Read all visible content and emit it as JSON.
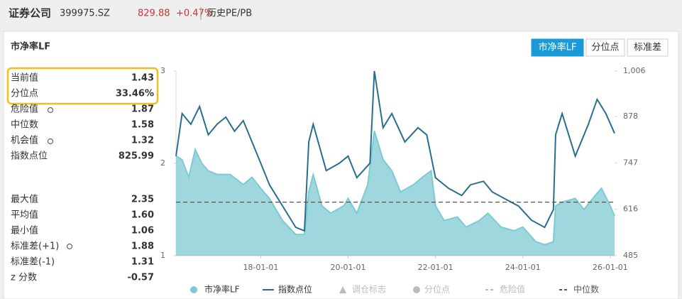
{
  "header": {
    "name": "证券公司",
    "code": "399975.SZ",
    "price": "829.88",
    "change": "+0.47%",
    "tab": "历史PE/PB"
  },
  "panel": {
    "title": "市净率LF",
    "buttons": [
      "市净率LF",
      "分位点",
      "标准差"
    ],
    "stats_top": [
      [
        "当前值",
        "1.43"
      ],
      [
        "分位点",
        "33.46%"
      ],
      [
        "危险值",
        "1.87"
      ],
      [
        "中位数",
        "1.58"
      ],
      [
        "机会值",
        "1.32"
      ],
      [
        "指数点位",
        "825.99"
      ]
    ],
    "stats_bottom": [
      [
        "最大值",
        "2.35"
      ],
      [
        "平均值",
        "1.60"
      ],
      [
        "最小值",
        "1.06"
      ],
      [
        "标准差(+1)",
        "1.88"
      ],
      [
        "标准差(-1)",
        "1.31"
      ],
      [
        "z 分数",
        "-0.57"
      ]
    ]
  },
  "chart_data": {
    "type": "line",
    "xlim": [
      2016.06,
      2026.1
    ],
    "xticks": [
      {
        "value": 2018,
        "label": "18-01-01"
      },
      {
        "value": 2020,
        "label": "20-01-01"
      },
      {
        "value": 2022,
        "label": "22-01-01"
      },
      {
        "value": 2024,
        "label": "24-01-01"
      },
      {
        "value": 2026,
        "label": "26-01-01"
      }
    ],
    "ylim": [
      1,
      3
    ],
    "yticks": [
      1,
      2,
      3
    ],
    "y2lim": [
      485,
      1006
    ],
    "y2ticks": [
      485,
      616,
      747,
      878,
      {
        "value": 1006,
        "label": "1,006"
      }
    ],
    "median_line": 1.58,
    "series": [
      {
        "name": "市净率LF",
        "color": "#7ecad3",
        "area": true,
        "x": [
          2016.06,
          2016.2,
          2016.35,
          2016.5,
          2016.65,
          2016.8,
          2017.0,
          2017.3,
          2017.6,
          2017.8,
          2018.0,
          2018.2,
          2018.5,
          2018.8,
          2019.0,
          2019.1,
          2019.2,
          2019.4,
          2019.6,
          2019.9,
          2020.0,
          2020.2,
          2020.45,
          2020.6,
          2020.8,
          2021.0,
          2021.2,
          2021.5,
          2021.7,
          2021.9,
          2022.0,
          2022.2,
          2022.5,
          2022.7,
          2023.0,
          2023.2,
          2023.5,
          2023.8,
          2024.0,
          2024.3,
          2024.5,
          2024.7,
          2024.75,
          2024.9,
          2025.2,
          2025.4,
          2025.6,
          2025.8,
          2026.0,
          2026.1
        ],
        "values": [
          2.08,
          2.04,
          1.85,
          2.15,
          2.0,
          1.92,
          1.88,
          1.88,
          1.77,
          1.85,
          1.73,
          1.62,
          1.38,
          1.23,
          1.23,
          1.69,
          1.88,
          1.54,
          1.46,
          1.54,
          1.62,
          1.46,
          1.77,
          2.35,
          2.04,
          1.92,
          1.69,
          1.77,
          1.85,
          1.92,
          1.54,
          1.38,
          1.42,
          1.31,
          1.38,
          1.46,
          1.31,
          1.27,
          1.31,
          1.15,
          1.12,
          1.15,
          1.54,
          1.58,
          1.62,
          1.5,
          1.62,
          1.73,
          1.54,
          1.43
        ]
      },
      {
        "name": "指数点位",
        "color": "#2a6e8f",
        "axis": "y2",
        "x": [
          2016.06,
          2016.2,
          2016.4,
          2016.6,
          2016.8,
          2017.0,
          2017.2,
          2017.4,
          2017.6,
          2017.8,
          2018.0,
          2018.2,
          2018.5,
          2018.8,
          2019.0,
          2019.1,
          2019.2,
          2019.5,
          2019.8,
          2020.0,
          2020.2,
          2020.5,
          2020.6,
          2020.8,
          2021.0,
          2021.3,
          2021.6,
          2021.8,
          2022.0,
          2022.3,
          2022.6,
          2022.8,
          2023.1,
          2023.3,
          2023.6,
          2023.9,
          2024.2,
          2024.5,
          2024.7,
          2024.75,
          2024.9,
          2025.2,
          2025.5,
          2025.7,
          2025.9,
          2026.1
        ],
        "values": [
          766,
          886,
          856,
          906,
          826,
          856,
          876,
          836,
          866,
          806,
          746,
          685,
          625,
          565,
          555,
          806,
          856,
          725,
          746,
          766,
          705,
          746,
          1006,
          846,
          886,
          806,
          846,
          826,
          705,
          675,
          655,
          685,
          695,
          665,
          645,
          625,
          585,
          565,
          615,
          826,
          886,
          766,
          856,
          926,
          886,
          830
        ]
      }
    ],
    "legend_extra": [
      {
        "name": "调仓标志",
        "marker": "triangle",
        "color": "#bbb"
      },
      {
        "name": "分位点",
        "marker": "circle",
        "color": "#bbb"
      },
      {
        "name": "危险值",
        "marker": "dash",
        "color": "#bbb"
      },
      {
        "name": "中位数",
        "marker": "dash",
        "color": "#555"
      }
    ]
  }
}
